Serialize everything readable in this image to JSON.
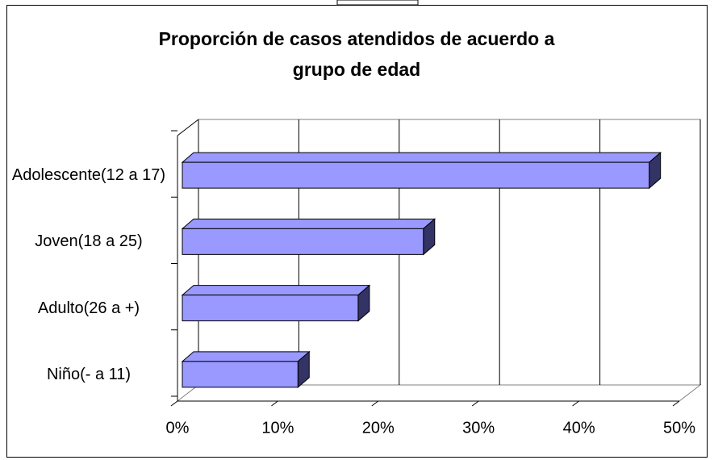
{
  "chart_data": {
    "type": "bar",
    "orientation": "horizontal",
    "title": "Proporción de casos atendidos de acuerdo a grupo de edad",
    "categories": [
      "Adolescente(12 a 17)",
      "Joven(18 a 25)",
      "Adulto(26 a +)",
      "Niño(- a 11)"
    ],
    "values": [
      47,
      24.5,
      18,
      12
    ],
    "color": "#9999ff",
    "xlim": [
      0,
      50
    ],
    "xticks": [
      {
        "value": 0,
        "label": "0%"
      },
      {
        "value": 10,
        "label": "10%"
      },
      {
        "value": 20,
        "label": "20%"
      },
      {
        "value": 30,
        "label": "30%"
      },
      {
        "value": 40,
        "label": "40%"
      },
      {
        "value": 50,
        "label": "50%"
      }
    ],
    "grid": true
  }
}
